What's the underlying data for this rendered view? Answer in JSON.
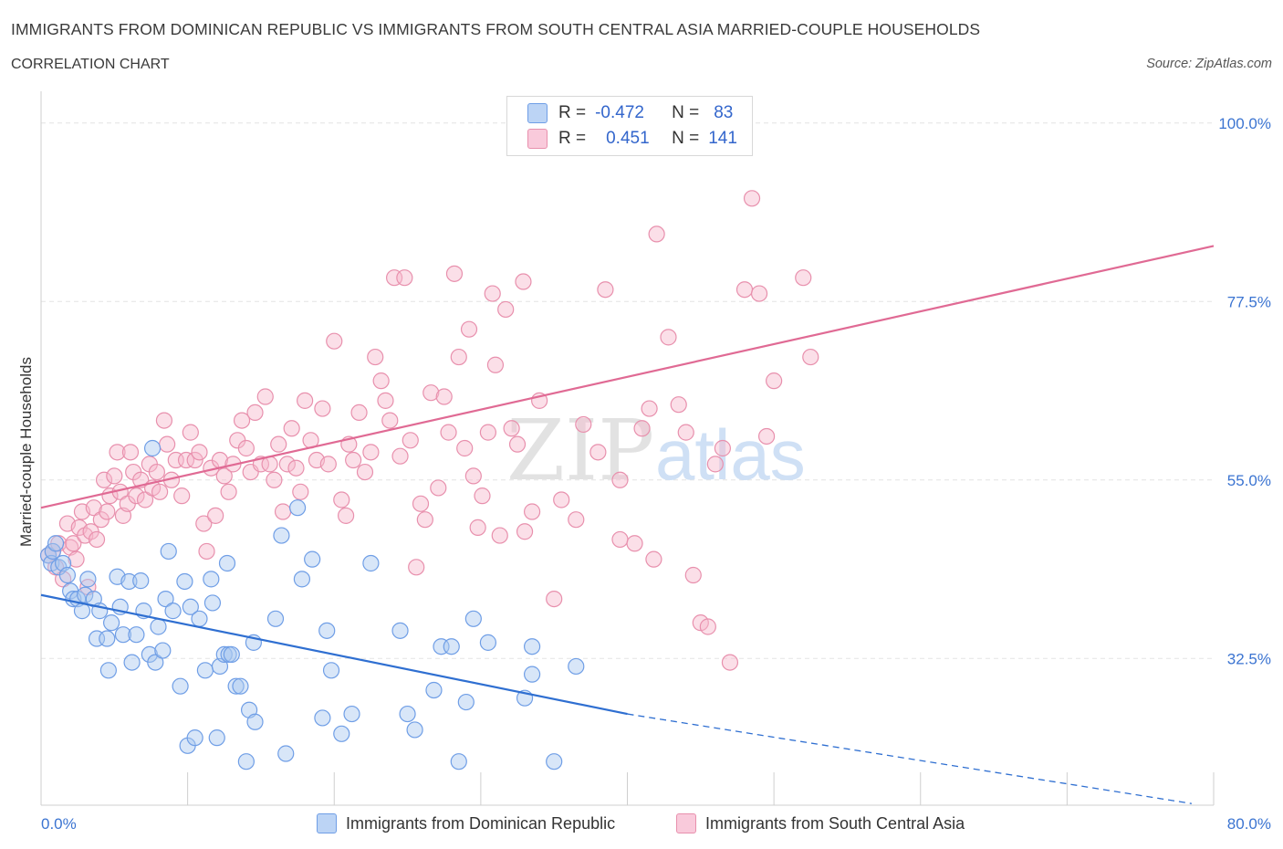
{
  "header": {
    "title": "IMMIGRANTS FROM DOMINICAN REPUBLIC VS IMMIGRANTS FROM SOUTH CENTRAL ASIA MARRIED-COUPLE HOUSEHOLDS",
    "subtitle": "CORRELATION CHART",
    "source": "Source: ZipAtlas.com"
  },
  "stats": {
    "blue": {
      "r_label": "R =",
      "r_value": "-0.472",
      "n_label": "N =",
      "n_value": "83"
    },
    "pink": {
      "r_label": "R =",
      "r_value": "0.451",
      "n_label": "N =",
      "n_value": "141"
    }
  },
  "colors": {
    "blue_fill": "#a9c7f0",
    "blue_stroke": "#6f9ee6",
    "blue_line": "#2f6fd1",
    "pink_fill": "#f6b9cc",
    "pink_stroke": "#e890ad",
    "pink_line": "#e06a94",
    "axis_label": "#3b74d1",
    "grid": "#e3e3e3"
  },
  "watermark": {
    "part1": "ZIP",
    "part2": "atlas"
  },
  "chart_data": {
    "type": "scatter",
    "xlabel": "",
    "ylabel": "Married-couple Households",
    "xlim": [
      0,
      80
    ],
    "ylim": [
      14,
      104
    ],
    "x_tick_labels": [
      "0.0%",
      "80.0%"
    ],
    "y_ticks": [
      32.5,
      55.0,
      77.5,
      100.0
    ],
    "y_tick_labels": [
      "32.5%",
      "55.0%",
      "77.5%",
      "100.0%"
    ],
    "grid": true,
    "legend_position": "bottom",
    "series": [
      {
        "name": "Immigrants from Dominican Republic",
        "color": "#6f9ee6",
        "trend": {
          "x0": 0,
          "y0": 40.5,
          "x1": 40,
          "y1": 25.5,
          "dashed_to_x": 78.5,
          "dashed_to_y": 14.2
        },
        "points": [
          [
            0.5,
            45.5
          ],
          [
            0.7,
            44.5
          ],
          [
            0.8,
            46
          ],
          [
            1,
            47
          ],
          [
            1.2,
            44
          ],
          [
            1.5,
            44.5
          ],
          [
            1.8,
            43
          ],
          [
            2,
            41
          ],
          [
            2.2,
            40
          ],
          [
            2.5,
            40
          ],
          [
            2.8,
            38.5
          ],
          [
            3,
            40.5
          ],
          [
            3.2,
            42.5
          ],
          [
            3.6,
            40
          ],
          [
            3.8,
            35
          ],
          [
            4,
            38.5
          ],
          [
            4.5,
            35
          ],
          [
            4.6,
            31
          ],
          [
            4.8,
            37
          ],
          [
            5.2,
            42.8
          ],
          [
            5.4,
            39
          ],
          [
            5.6,
            35.5
          ],
          [
            6,
            42.2
          ],
          [
            6.2,
            32
          ],
          [
            6.5,
            35.5
          ],
          [
            6.8,
            42.3
          ],
          [
            7,
            38.5
          ],
          [
            7.4,
            33
          ],
          [
            7.6,
            59
          ],
          [
            7.8,
            32
          ],
          [
            8,
            36.5
          ],
          [
            8.3,
            33.5
          ],
          [
            8.5,
            40
          ],
          [
            8.7,
            46
          ],
          [
            9,
            38.5
          ],
          [
            9.5,
            29
          ],
          [
            9.8,
            42.2
          ],
          [
            10,
            21.5
          ],
          [
            10.2,
            39
          ],
          [
            10.5,
            22.5
          ],
          [
            10.8,
            37.5
          ],
          [
            11.2,
            31
          ],
          [
            11.6,
            42.5
          ],
          [
            11.7,
            39.5
          ],
          [
            12,
            22.5
          ],
          [
            12.2,
            31.5
          ],
          [
            12.5,
            33
          ],
          [
            12.8,
            33
          ],
          [
            12.7,
            44.5
          ],
          [
            13,
            33
          ],
          [
            13.3,
            29
          ],
          [
            13.6,
            29
          ],
          [
            14,
            19.5
          ],
          [
            14.2,
            26
          ],
          [
            14.5,
            34.5
          ],
          [
            14.6,
            24.5
          ],
          [
            16,
            37.5
          ],
          [
            16.4,
            48
          ],
          [
            16.7,
            20.5
          ],
          [
            17.5,
            51.5
          ],
          [
            17.8,
            42.5
          ],
          [
            18.5,
            45
          ],
          [
            19.2,
            25
          ],
          [
            19.5,
            36
          ],
          [
            19.8,
            31
          ],
          [
            20.5,
            23
          ],
          [
            21.2,
            25.5
          ],
          [
            22.5,
            44.5
          ],
          [
            24.5,
            36
          ],
          [
            25,
            25.5
          ],
          [
            25.5,
            23.5
          ],
          [
            27.3,
            34
          ],
          [
            26.8,
            28.5
          ],
          [
            28,
            34
          ],
          [
            28.5,
            19.5
          ],
          [
            29,
            27
          ],
          [
            29.5,
            37.5
          ],
          [
            30.5,
            34.5
          ],
          [
            33,
            27.5
          ],
          [
            33.5,
            34
          ],
          [
            33.5,
            30.5
          ],
          [
            35,
            19.5
          ],
          [
            36.5,
            31.5
          ]
        ]
      },
      {
        "name": "Immigrants from South Central Asia",
        "color": "#e890ad",
        "trend": {
          "x0": 0,
          "y0": 51.5,
          "x1": 80,
          "y1": 84.5
        },
        "points": [
          [
            0.5,
            45.5
          ],
          [
            0.8,
            46
          ],
          [
            1,
            44
          ],
          [
            1.2,
            47
          ],
          [
            1.5,
            42.5
          ],
          [
            1.8,
            49.5
          ],
          [
            2,
            46.5
          ],
          [
            2.2,
            47
          ],
          [
            2.4,
            45
          ],
          [
            2.6,
            49
          ],
          [
            2.8,
            51
          ],
          [
            3,
            48
          ],
          [
            3.2,
            41.5
          ],
          [
            3.4,
            48.5
          ],
          [
            3.6,
            51.5
          ],
          [
            3.8,
            47.5
          ],
          [
            4.1,
            50
          ],
          [
            4.3,
            55
          ],
          [
            4.5,
            51
          ],
          [
            4.7,
            53
          ],
          [
            5,
            55.5
          ],
          [
            5.2,
            58.5
          ],
          [
            5.4,
            53.5
          ],
          [
            5.6,
            50.5
          ],
          [
            5.9,
            52
          ],
          [
            6.1,
            58.5
          ],
          [
            6.3,
            56
          ],
          [
            6.5,
            53
          ],
          [
            6.8,
            55
          ],
          [
            7.1,
            52.5
          ],
          [
            7.4,
            57
          ],
          [
            7.6,
            54
          ],
          [
            7.9,
            56
          ],
          [
            8.1,
            53.5
          ],
          [
            8.4,
            62.5
          ],
          [
            8.6,
            59.5
          ],
          [
            8.9,
            55
          ],
          [
            9.2,
            57.5
          ],
          [
            9.6,
            53
          ],
          [
            9.9,
            57.5
          ],
          [
            10.2,
            61
          ],
          [
            10.5,
            57.5
          ],
          [
            10.8,
            58.5
          ],
          [
            11.1,
            49.5
          ],
          [
            11.3,
            46
          ],
          [
            11.6,
            56.5
          ],
          [
            11.9,
            50.5
          ],
          [
            12.2,
            57.5
          ],
          [
            12.5,
            55.5
          ],
          [
            12.8,
            53.5
          ],
          [
            13.1,
            57
          ],
          [
            13.4,
            60
          ],
          [
            13.7,
            62.5
          ],
          [
            14,
            59
          ],
          [
            14.3,
            56
          ],
          [
            14.6,
            63.5
          ],
          [
            15,
            57
          ],
          [
            15.3,
            65.5
          ],
          [
            15.6,
            57
          ],
          [
            15.9,
            55
          ],
          [
            16.2,
            59.5
          ],
          [
            16.5,
            51
          ],
          [
            16.8,
            57
          ],
          [
            17.1,
            61.5
          ],
          [
            17.4,
            56.5
          ],
          [
            17.7,
            53.5
          ],
          [
            18,
            65
          ],
          [
            18.4,
            60
          ],
          [
            18.8,
            57.5
          ],
          [
            19.2,
            64
          ],
          [
            19.6,
            57
          ],
          [
            20,
            72.5
          ],
          [
            20.5,
            52.5
          ],
          [
            20.8,
            50.5
          ],
          [
            21,
            59.5
          ],
          [
            21.3,
            57.5
          ],
          [
            21.7,
            63.5
          ],
          [
            22.1,
            56
          ],
          [
            22.5,
            58.5
          ],
          [
            22.8,
            70.5
          ],
          [
            23.2,
            67.5
          ],
          [
            23.5,
            65
          ],
          [
            23.8,
            62.5
          ],
          [
            24.1,
            80.5
          ],
          [
            24.5,
            58
          ],
          [
            24.8,
            80.5
          ],
          [
            25.2,
            60
          ],
          [
            25.6,
            44
          ],
          [
            25.9,
            52
          ],
          [
            26.2,
            50
          ],
          [
            26.6,
            66
          ],
          [
            27.1,
            54
          ],
          [
            27.5,
            65.5
          ],
          [
            27.8,
            61
          ],
          [
            28.2,
            81
          ],
          [
            28.5,
            70.5
          ],
          [
            28.9,
            59
          ],
          [
            29.2,
            74
          ],
          [
            29.5,
            55.5
          ],
          [
            29.8,
            49
          ],
          [
            30.1,
            53
          ],
          [
            30.5,
            61
          ],
          [
            30.8,
            78.5
          ],
          [
            31,
            69.5
          ],
          [
            31.3,
            48
          ],
          [
            31.7,
            76.5
          ],
          [
            32.1,
            61.5
          ],
          [
            32.5,
            59.5
          ],
          [
            32.9,
            80
          ],
          [
            33,
            48.5
          ],
          [
            33.5,
            51
          ],
          [
            34,
            65
          ],
          [
            35,
            40
          ],
          [
            35.5,
            52.5
          ],
          [
            36.5,
            50
          ],
          [
            37,
            62
          ],
          [
            38,
            58.5
          ],
          [
            38.5,
            79
          ],
          [
            39.5,
            55
          ],
          [
            39.5,
            47.5
          ],
          [
            40.5,
            47
          ],
          [
            41,
            61.5
          ],
          [
            41.5,
            64
          ],
          [
            41.8,
            45
          ],
          [
            42,
            86
          ],
          [
            42.8,
            73
          ],
          [
            43.5,
            64.5
          ],
          [
            44,
            61
          ],
          [
            44.5,
            43
          ],
          [
            45,
            37
          ],
          [
            45.5,
            36.5
          ],
          [
            46,
            57
          ],
          [
            46.5,
            59
          ],
          [
            47,
            32
          ],
          [
            48,
            79
          ],
          [
            48.5,
            90.5
          ],
          [
            49,
            78.5
          ],
          [
            49.5,
            60.5
          ],
          [
            50,
            67.5
          ],
          [
            52.5,
            70.5
          ],
          [
            52,
            80.5
          ]
        ]
      }
    ]
  }
}
